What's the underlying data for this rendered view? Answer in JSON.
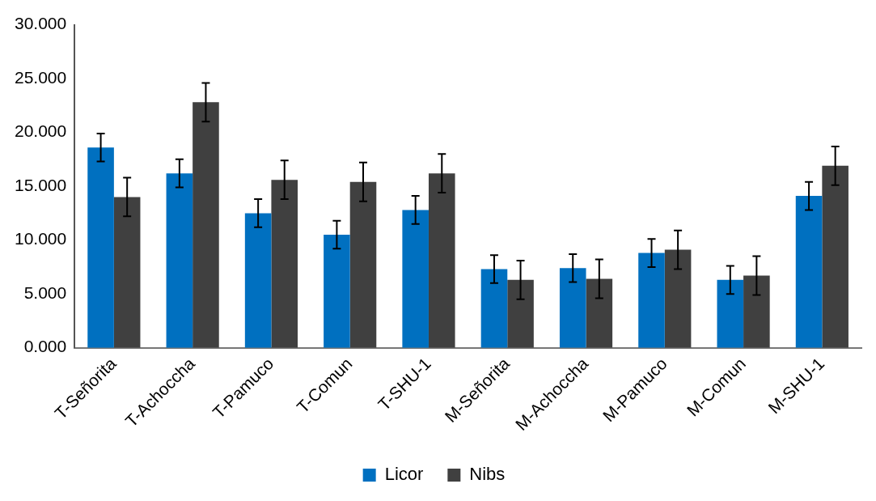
{
  "chart_data": {
    "type": "bar",
    "categories": [
      "T-Señorita",
      "T-Achoccha",
      "T-Pamuco",
      "T-Comun",
      "T-SHU-1",
      "M-Señorita",
      "M-Achoccha",
      "M-Pamuco",
      "M-Comun",
      "M-SHU-1"
    ],
    "series": [
      {
        "name": "Licor",
        "color": "#0070c0",
        "values": [
          18.6,
          16.2,
          12.5,
          10.5,
          12.8,
          7.3,
          7.4,
          8.8,
          6.3,
          14.1
        ],
        "errors": [
          1.3,
          1.3,
          1.3,
          1.3,
          1.3,
          1.3,
          1.3,
          1.3,
          1.3,
          1.3
        ]
      },
      {
        "name": "Nibs",
        "color": "#404040",
        "values": [
          14.0,
          22.8,
          15.6,
          15.4,
          16.2,
          6.3,
          6.4,
          9.1,
          6.7,
          16.9
        ],
        "errors": [
          1.8,
          1.8,
          1.8,
          1.8,
          1.8,
          1.8,
          1.8,
          1.8,
          1.8,
          1.8
        ]
      }
    ],
    "ylim": [
      0,
      30
    ],
    "yticks": [
      {
        "value": 0,
        "label": "0.000"
      },
      {
        "value": 5,
        "label": "5.000"
      },
      {
        "value": 10,
        "label": "10.000"
      },
      {
        "value": 15,
        "label": "15.000"
      },
      {
        "value": 20,
        "label": "20.000"
      },
      {
        "value": 25,
        "label": "25.000"
      },
      {
        "value": 30,
        "label": "30.000"
      }
    ],
    "grid": false,
    "legend": "bottom"
  }
}
